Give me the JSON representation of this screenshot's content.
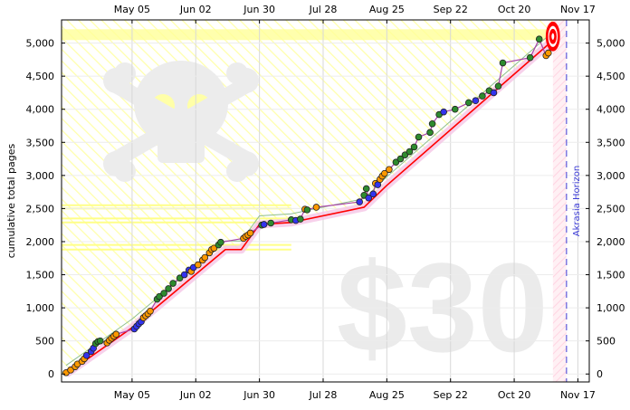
{
  "chart_data": {
    "type": "scatter",
    "title": "",
    "xlabel": "",
    "ylabel": "cumulative total pages",
    "x_ticks": [
      "May 05",
      "Jun 02",
      "Jun 30",
      "Jul 28",
      "Aug 25",
      "Sep 22",
      "Oct 20",
      "Nov 17"
    ],
    "y_ticks": [
      "0",
      "500",
      "1,000",
      "1,500",
      "2,000",
      "2,500",
      "3,000",
      "3,500",
      "4,000",
      "4,500",
      "5,000"
    ],
    "xlim": [
      "2013-04-04",
      "2013-11-22"
    ],
    "ylim": [
      -120,
      5350
    ],
    "watermark": "$30",
    "horizon": {
      "label": "Akrasia Horizon",
      "date": "2013-11-12"
    },
    "colors": {
      "green": "#2e8b2e",
      "blue": "#3333ee",
      "orange": "#ff9900",
      "road": "#ff0000",
      "rose": "#aa44aa",
      "yellow": "#ffff99",
      "horizon": "#3b3bd6"
    },
    "road": [
      {
        "x": "2013-04-06",
        "y": 0
      },
      {
        "x": "2013-05-05",
        "y": 700
      },
      {
        "x": "2013-06-15",
        "y": 1880
      },
      {
        "x": "2013-06-22",
        "y": 1880
      },
      {
        "x": "2013-06-30",
        "y": 2260
      },
      {
        "x": "2013-07-14",
        "y": 2290
      },
      {
        "x": "2013-08-15",
        "y": 2520
      },
      {
        "x": "2013-08-25",
        "y": 2850
      },
      {
        "x": "2013-11-08",
        "y": 5100
      }
    ],
    "series": [
      {
        "color": "orange",
        "points": [
          {
            "x": "2013-04-06",
            "y": 20
          },
          {
            "x": "2013-04-08",
            "y": 60
          },
          {
            "x": "2013-04-10",
            "y": 110
          },
          {
            "x": "2013-04-11",
            "y": 150
          },
          {
            "x": "2013-04-13",
            "y": 190
          },
          {
            "x": "2013-04-14",
            "y": 230
          },
          {
            "x": "2013-04-24",
            "y": 470
          },
          {
            "x": "2013-04-25",
            "y": 510
          },
          {
            "x": "2013-04-26",
            "y": 540
          },
          {
            "x": "2013-04-27",
            "y": 570
          },
          {
            "x": "2013-04-28",
            "y": 600
          },
          {
            "x": "2013-05-10",
            "y": 850
          },
          {
            "x": "2013-05-11",
            "y": 880
          },
          {
            "x": "2013-05-12",
            "y": 910
          },
          {
            "x": "2013-05-13",
            "y": 950
          },
          {
            "x": "2013-05-31",
            "y": 1550
          },
          {
            "x": "2013-06-03",
            "y": 1650
          },
          {
            "x": "2013-06-05",
            "y": 1720
          },
          {
            "x": "2013-06-06",
            "y": 1760
          },
          {
            "x": "2013-06-08",
            "y": 1830
          },
          {
            "x": "2013-06-09",
            "y": 1880
          },
          {
            "x": "2013-06-10",
            "y": 1900
          },
          {
            "x": "2013-06-23",
            "y": 2050
          },
          {
            "x": "2013-06-24",
            "y": 2080
          },
          {
            "x": "2013-06-25",
            "y": 2100
          },
          {
            "x": "2013-06-26",
            "y": 2130
          },
          {
            "x": "2013-07-20",
            "y": 2490
          },
          {
            "x": "2013-07-25",
            "y": 2520
          },
          {
            "x": "2013-08-20",
            "y": 2880
          },
          {
            "x": "2013-08-22",
            "y": 2940
          },
          {
            "x": "2013-08-23",
            "y": 2990
          },
          {
            "x": "2013-08-24",
            "y": 3030
          },
          {
            "x": "2013-08-26",
            "y": 3090
          },
          {
            "x": "2013-11-03",
            "y": 4810
          },
          {
            "x": "2013-11-04",
            "y": 4850
          }
        ]
      },
      {
        "color": "green",
        "points": [
          {
            "x": "2013-04-19",
            "y": 460
          },
          {
            "x": "2013-04-20",
            "y": 490
          },
          {
            "x": "2013-04-21",
            "y": 500
          },
          {
            "x": "2013-05-16",
            "y": 1130
          },
          {
            "x": "2013-05-17",
            "y": 1170
          },
          {
            "x": "2013-05-19",
            "y": 1220
          },
          {
            "x": "2013-05-21",
            "y": 1290
          },
          {
            "x": "2013-05-23",
            "y": 1370
          },
          {
            "x": "2013-05-26",
            "y": 1450
          },
          {
            "x": "2013-06-12",
            "y": 1950
          },
          {
            "x": "2013-06-13",
            "y": 1990
          },
          {
            "x": "2013-07-01",
            "y": 2250
          },
          {
            "x": "2013-07-05",
            "y": 2280
          },
          {
            "x": "2013-07-14",
            "y": 2330
          },
          {
            "x": "2013-07-18",
            "y": 2340
          },
          {
            "x": "2013-07-21",
            "y": 2480
          },
          {
            "x": "2013-08-15",
            "y": 2700
          },
          {
            "x": "2013-08-16",
            "y": 2800
          },
          {
            "x": "2013-08-29",
            "y": 3200
          },
          {
            "x": "2013-08-31",
            "y": 3250
          },
          {
            "x": "2013-09-02",
            "y": 3310
          },
          {
            "x": "2013-09-04",
            "y": 3360
          },
          {
            "x": "2013-09-06",
            "y": 3430
          },
          {
            "x": "2013-09-08",
            "y": 3580
          },
          {
            "x": "2013-09-13",
            "y": 3650
          },
          {
            "x": "2013-09-14",
            "y": 3780
          },
          {
            "x": "2013-09-17",
            "y": 3920
          },
          {
            "x": "2013-09-24",
            "y": 4000
          },
          {
            "x": "2013-09-30",
            "y": 4100
          },
          {
            "x": "2013-10-06",
            "y": 4200
          },
          {
            "x": "2013-10-09",
            "y": 4280
          },
          {
            "x": "2013-10-13",
            "y": 4350
          },
          {
            "x": "2013-10-15",
            "y": 4700
          },
          {
            "x": "2013-10-27",
            "y": 4780
          },
          {
            "x": "2013-10-31",
            "y": 5060
          }
        ]
      },
      {
        "color": "blue",
        "points": [
          {
            "x": "2013-04-15",
            "y": 280
          },
          {
            "x": "2013-04-17",
            "y": 340
          },
          {
            "x": "2013-04-18",
            "y": 390
          },
          {
            "x": "2013-05-06",
            "y": 680
          },
          {
            "x": "2013-05-07",
            "y": 720
          },
          {
            "x": "2013-05-08",
            "y": 760
          },
          {
            "x": "2013-05-09",
            "y": 790
          },
          {
            "x": "2013-05-28",
            "y": 1500
          },
          {
            "x": "2013-05-30",
            "y": 1570
          },
          {
            "x": "2013-06-01",
            "y": 1610
          },
          {
            "x": "2013-07-02",
            "y": 2260
          },
          {
            "x": "2013-07-16",
            "y": 2320
          },
          {
            "x": "2013-08-13",
            "y": 2600
          },
          {
            "x": "2013-08-17",
            "y": 2660
          },
          {
            "x": "2013-08-19",
            "y": 2720
          },
          {
            "x": "2013-08-21",
            "y": 2860
          },
          {
            "x": "2013-09-19",
            "y": 3960
          },
          {
            "x": "2013-10-03",
            "y": 4130
          },
          {
            "x": "2013-10-11",
            "y": 4250
          }
        ]
      }
    ],
    "final_point": {
      "x": "2013-11-06",
      "y": 5100
    }
  }
}
